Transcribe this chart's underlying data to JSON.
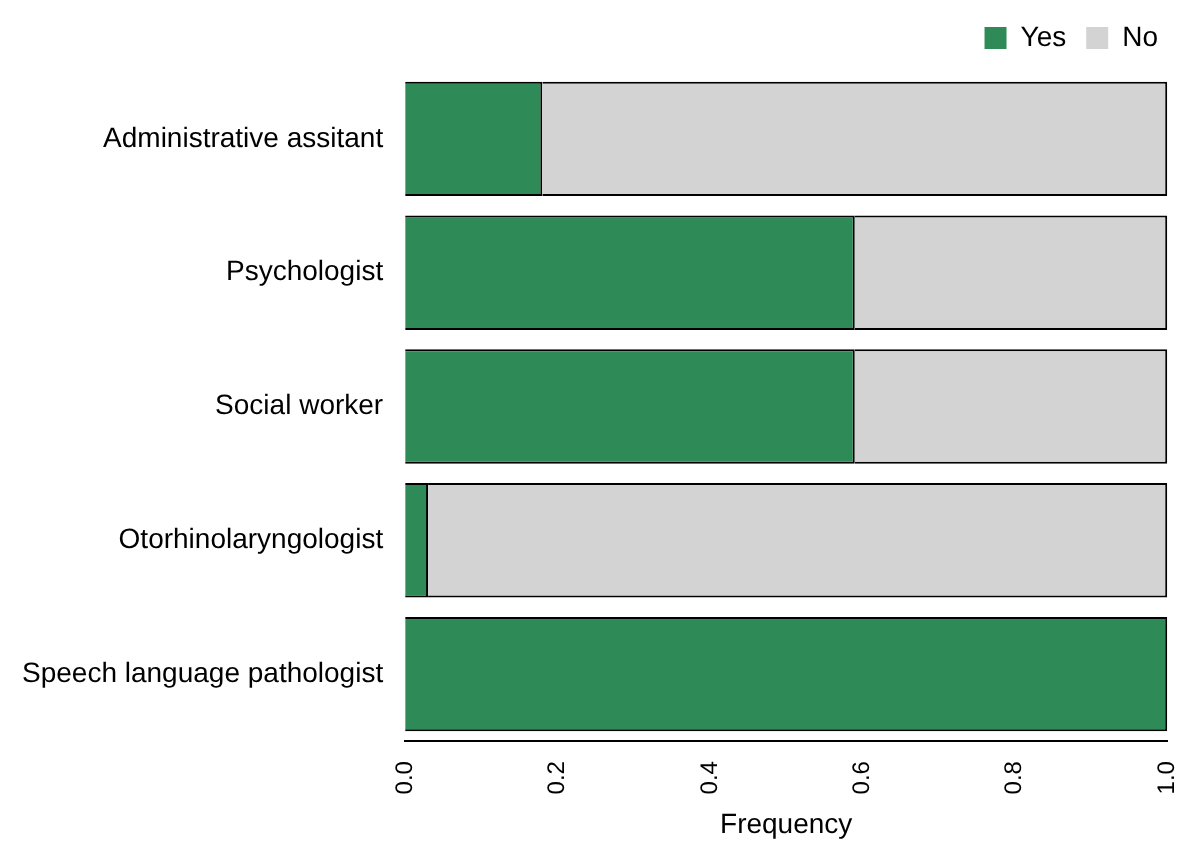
{
  "chart_data": {
    "type": "bar",
    "orientation": "horizontal",
    "stacked": true,
    "xlabel": "Frequency",
    "categories": [
      "Administrative assitant",
      "Psychologist",
      "Social worker",
      "Otorhinolaryngologist",
      "Speech language pathologist"
    ],
    "series": [
      {
        "name": "Yes",
        "color": "#2e8b57",
        "values": [
          0.18,
          0.59,
          0.59,
          0.03,
          1.0
        ]
      },
      {
        "name": "No",
        "color": "#d3d3d3",
        "values": [
          0.82,
          0.41,
          0.41,
          0.97,
          0
        ]
      }
    ],
    "xlim": [
      0,
      1
    ],
    "xticks": [
      {
        "value": 0,
        "label": "0.0"
      },
      0.2,
      0.4,
      0.6,
      0.8,
      {
        "value": 1,
        "label": "1.0"
      }
    ],
    "grid": false,
    "legend": "top"
  }
}
